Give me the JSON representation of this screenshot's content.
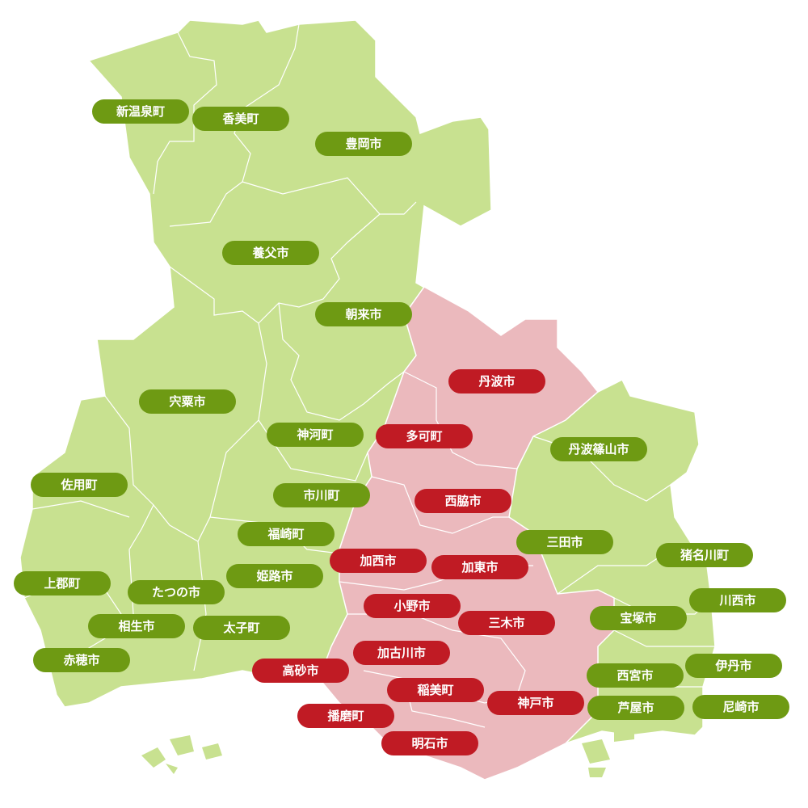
{
  "colors": {
    "other_area_fill": "#c8e190",
    "highlight_area_fill": "#ebb9bd",
    "other_label": "#6e9a13",
    "highlight_label": "#c01b24",
    "border": "#ffffff"
  },
  "municipalities": {
    "shin_onsen": "新温泉町",
    "kami": "香美町",
    "toyooka": "豊岡市",
    "yabu": "養父市",
    "asago": "朝来市",
    "shiso": "宍粟市",
    "kamikawa": "神河町",
    "tamba_sasayama": "丹波篠山市",
    "sayo": "佐用町",
    "ichikawa": "市川町",
    "fukusaki": "福崎町",
    "sanda": "三田市",
    "inagawa": "猪名川町",
    "kamigori": "上郡町",
    "himeji": "姫路市",
    "tatsuno": "たつの市",
    "kawanishi": "川西市",
    "takarazuka": "宝塚市",
    "aioi": "相生市",
    "taishi": "太子町",
    "ako": "赤穂市",
    "nishinomiya": "西宮市",
    "itami": "伊丹市",
    "ashiya": "芦屋市",
    "amagasaki": "尼崎市"
  },
  "highlighted": {
    "tamba": "丹波市",
    "taka": "多可町",
    "nishiwaki": "西脇市",
    "kasai": "加西市",
    "kato": "加東市",
    "ono": "小野市",
    "miki": "三木市",
    "kakogawa": "加古川市",
    "takasago": "高砂市",
    "inami": "稲美町",
    "kobe": "神戸市",
    "harima": "播磨町",
    "akashi": "明石市"
  }
}
